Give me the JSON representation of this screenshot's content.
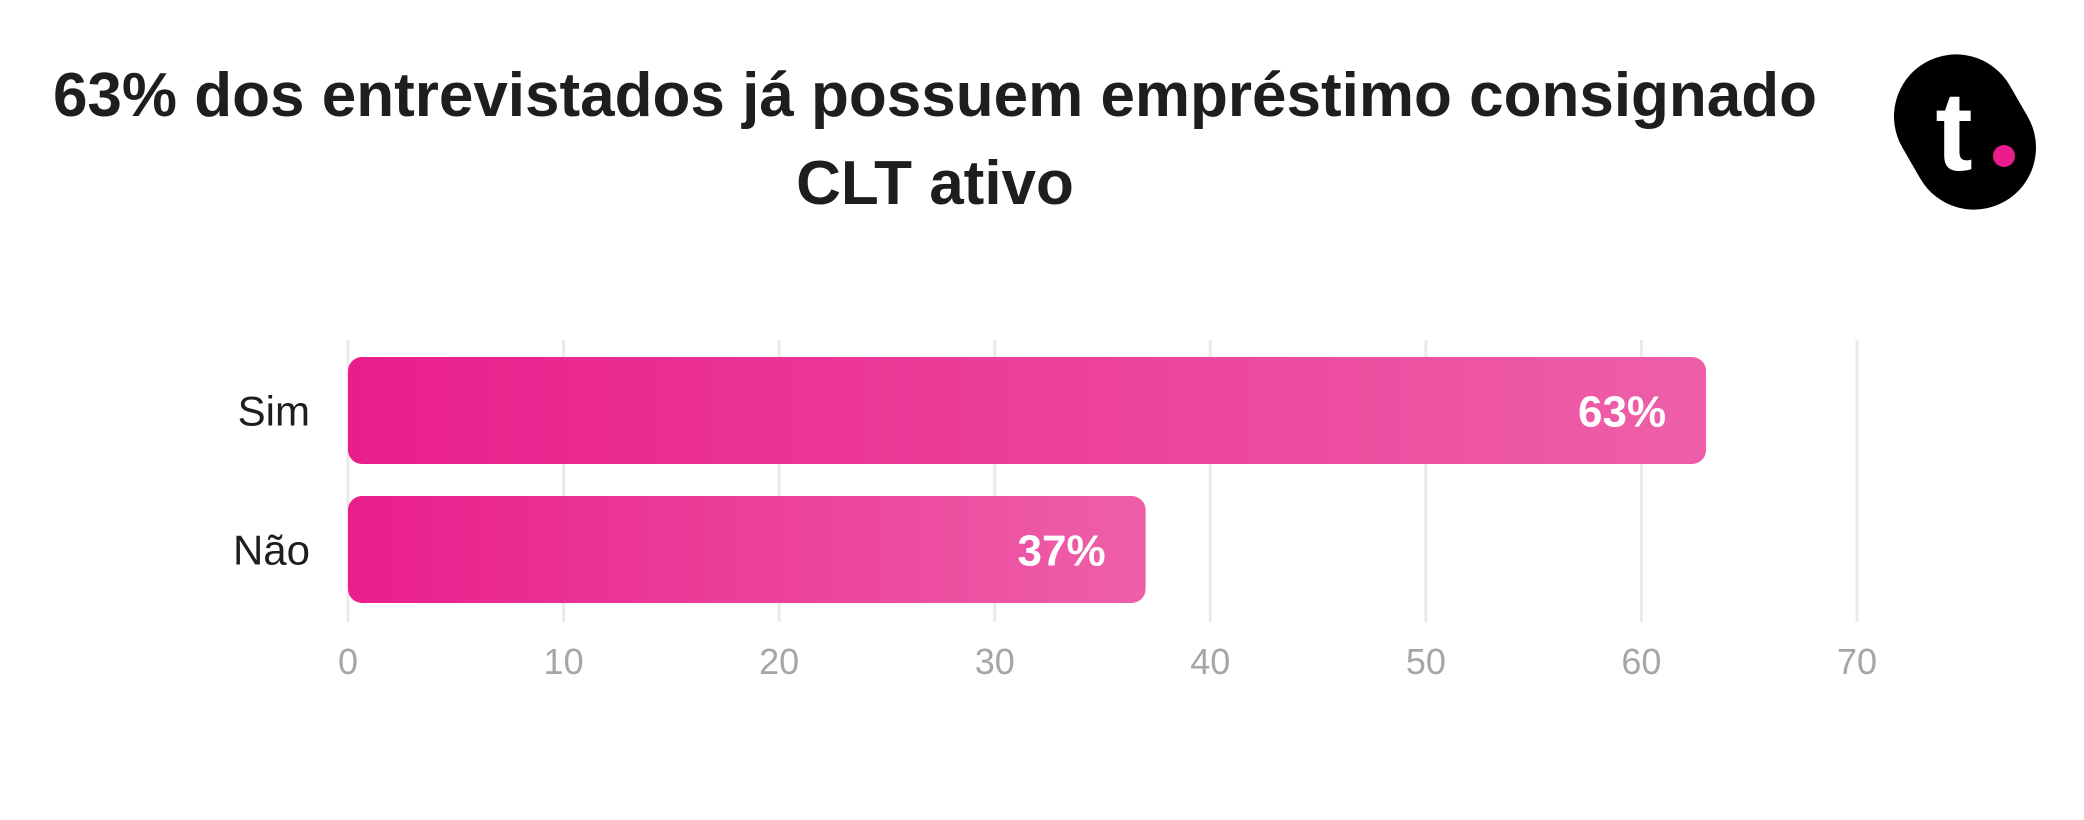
{
  "title": "63% dos entrevistados já possuem empréstimo consignado CLT ativo",
  "logo": {
    "icon": "t-logo-icon",
    "letter": "t",
    "background": "#000000",
    "dot_color": "#e91e8c"
  },
  "colors": {
    "bar_start": "#e91e8c",
    "bar_end": "#ee5fa8",
    "grid": "#ebebe4",
    "tick_text": "#a6a6a6",
    "category_text": "#1e1e1e"
  },
  "chart_data": {
    "type": "bar",
    "orientation": "horizontal",
    "categories": [
      "Sim",
      "Não"
    ],
    "values": [
      63,
      37
    ],
    "value_labels": [
      "63%",
      "37%"
    ],
    "title": "63% dos entrevistados já possuem empréstimo consignado CLT ativo",
    "xlabel": "",
    "ylabel": "",
    "xlim": [
      0,
      70
    ],
    "xticks": [
      0,
      10,
      20,
      30,
      40,
      50,
      60,
      70
    ],
    "xtick_labels": [
      "0",
      "10",
      "20",
      "30",
      "40",
      "50",
      "60",
      "70"
    ],
    "grid": true,
    "legend": "none"
  }
}
